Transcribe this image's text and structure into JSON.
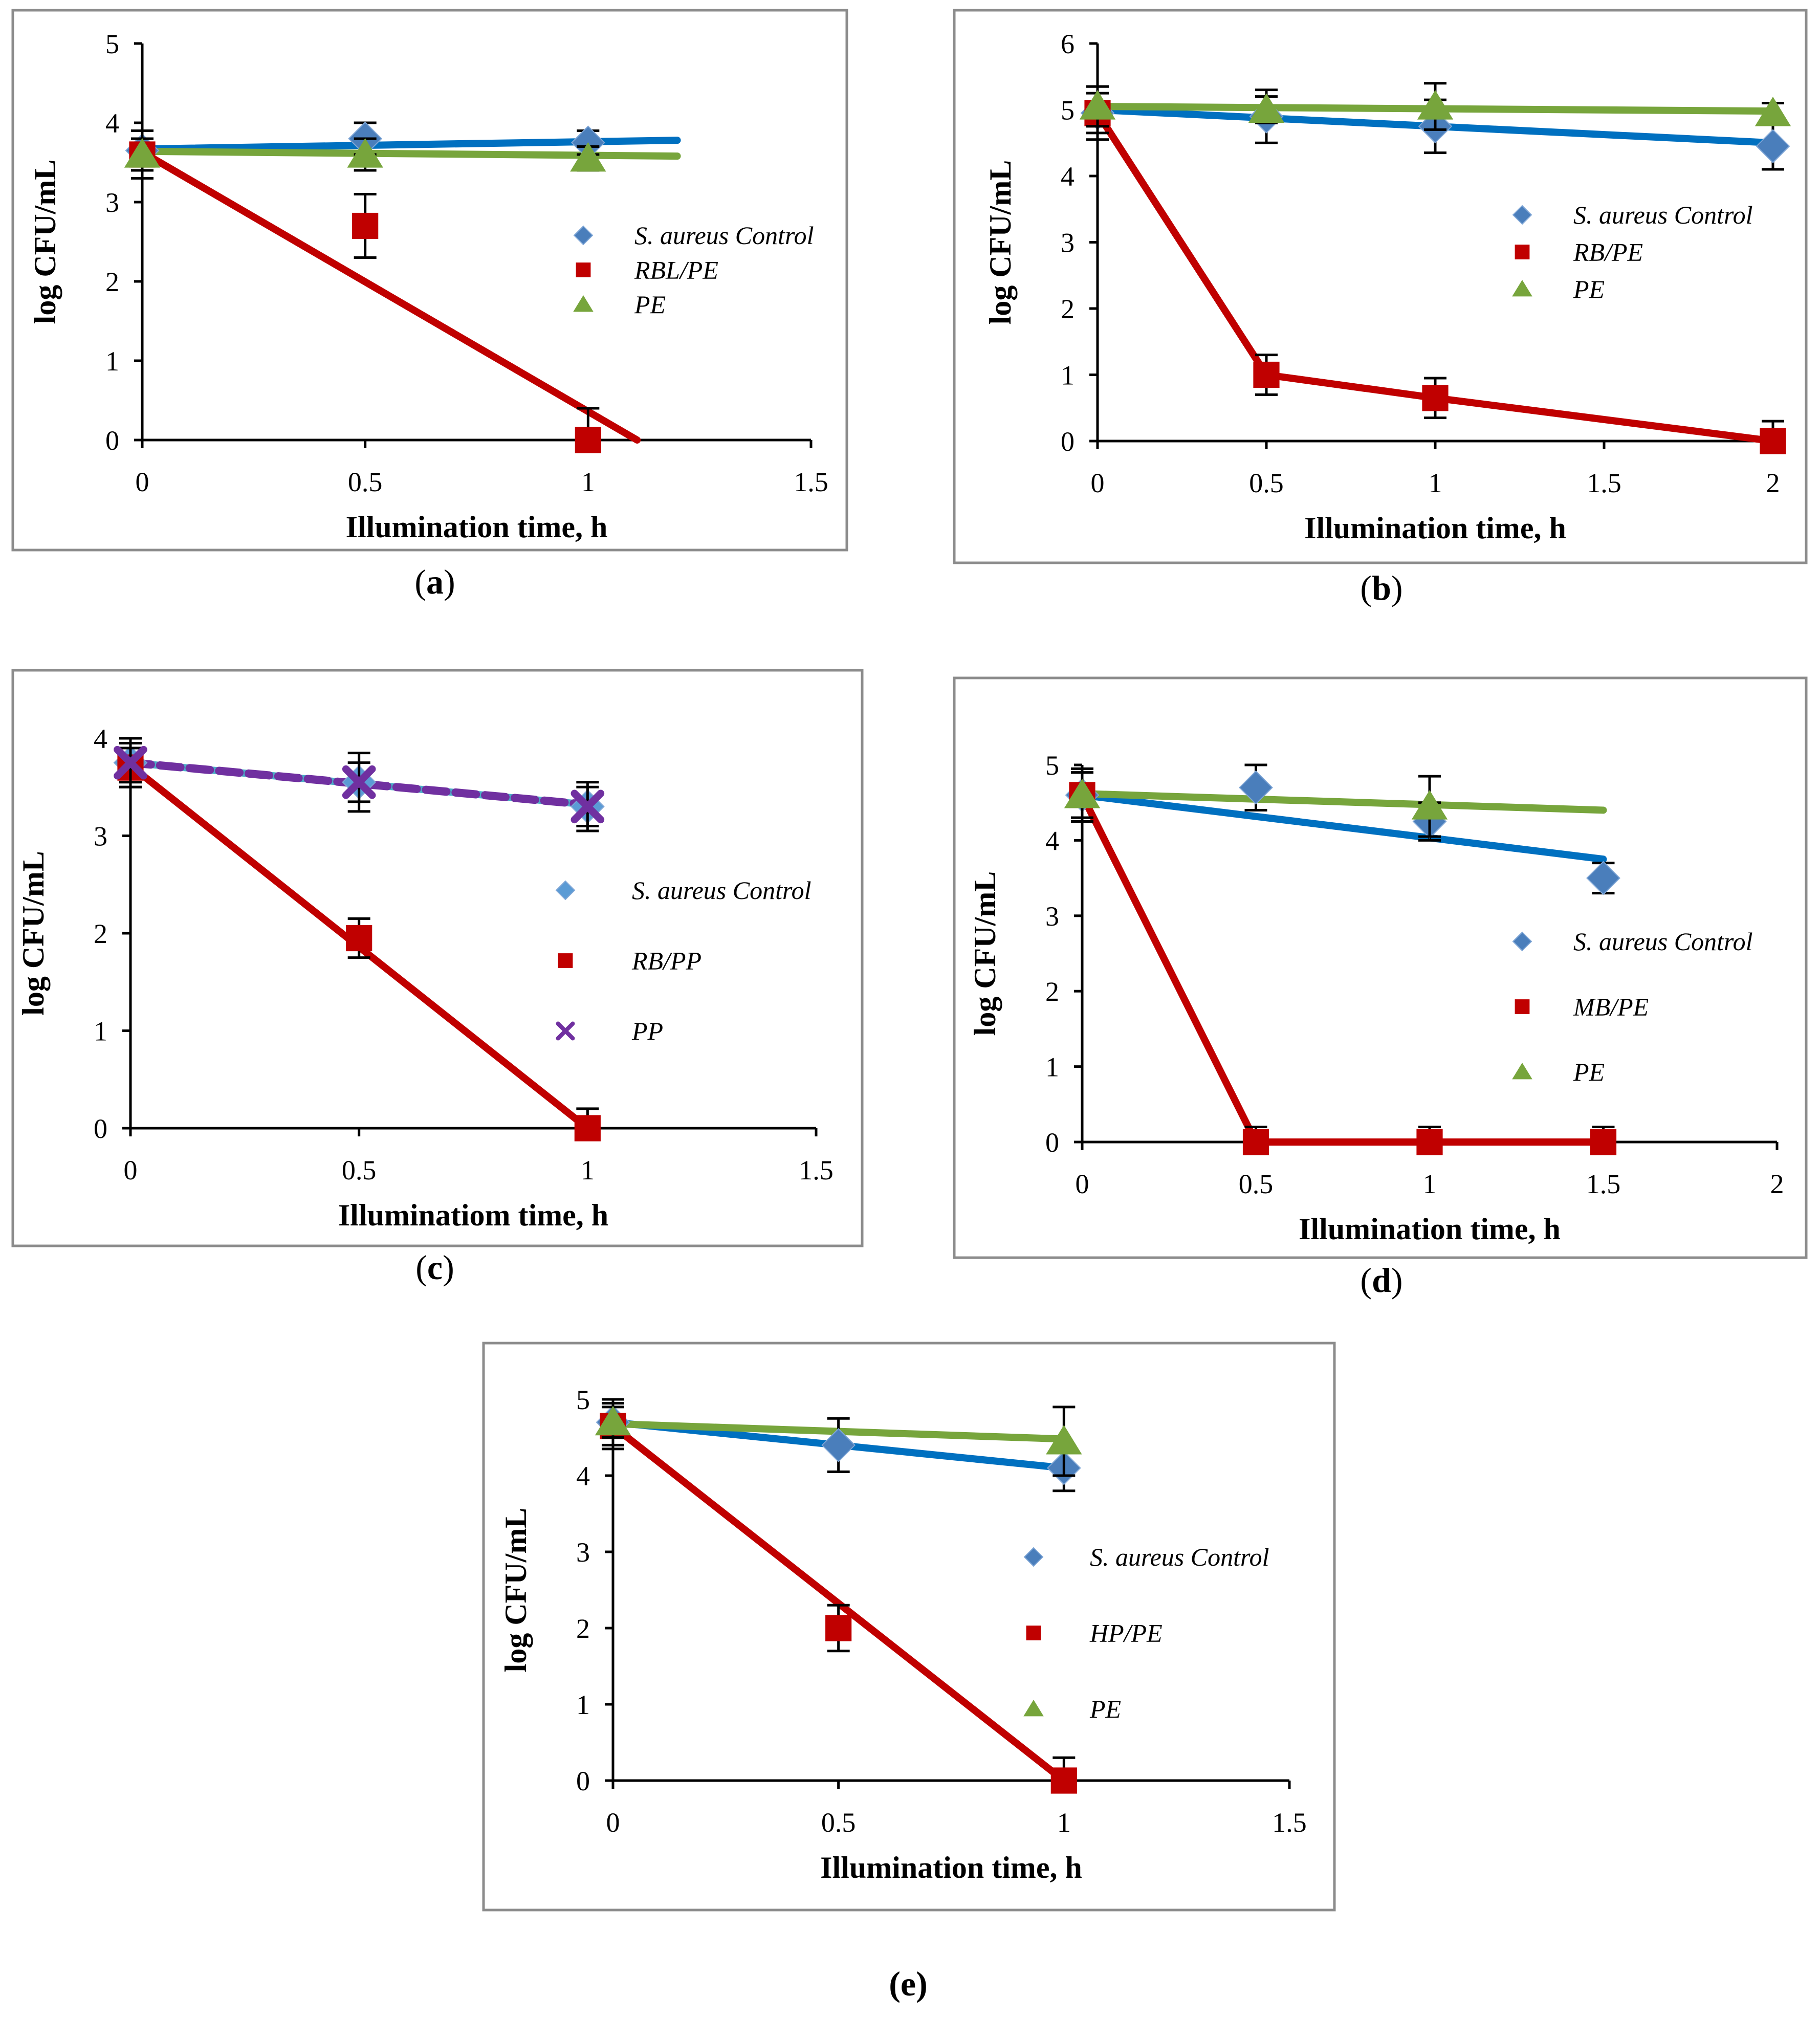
{
  "chart_data": [
    {
      "id": "a",
      "type": "scatter",
      "caption": "a",
      "xlabel": "Illumination time, h",
      "ylabel": "log CFU/mL",
      "xlim": [
        0,
        1.5
      ],
      "ylim": [
        0,
        5
      ],
      "xticks": [
        "0",
        "0.5",
        "1",
        "1.5"
      ],
      "yticks": [
        "0",
        "1",
        "2",
        "3",
        "4",
        "5"
      ],
      "series": [
        {
          "name": "S. aureus Control",
          "marker": "diamond",
          "color": "#4a7ebb",
          "line_color": "#0070c0",
          "x": [
            0,
            0.5,
            1
          ],
          "y": [
            3.65,
            3.8,
            3.75
          ],
          "err": [
            0.15,
            0.2,
            0.15
          ],
          "trend": [
            [
              0,
              3.67
            ],
            [
              1.2,
              3.78
            ]
          ]
        },
        {
          "name": "RBL/PE",
          "marker": "square",
          "color": "#c00000",
          "line_color": "#c00000",
          "x": [
            0,
            0.5,
            1
          ],
          "y": [
            3.6,
            2.7,
            0.0
          ],
          "err": [
            0.3,
            0.4,
            0.4
          ],
          "trend": [
            [
              0,
              3.63
            ],
            [
              1.11,
              0
            ]
          ]
        },
        {
          "name": "PE",
          "marker": "triangle",
          "color": "#77a53c",
          "line_color": "#77a53c",
          "x": [
            0,
            0.5,
            1
          ],
          "y": [
            3.6,
            3.6,
            3.55
          ],
          "err": [
            0.2,
            0.2,
            0.15
          ],
          "trend": [
            [
              0,
              3.64
            ],
            [
              1.2,
              3.58
            ]
          ]
        }
      ]
    },
    {
      "id": "b",
      "type": "scatter",
      "caption": "b",
      "xlabel": "Illumination time, h",
      "ylabel": "log CFU/mL",
      "xlim": [
        0,
        2
      ],
      "ylim": [
        0,
        6
      ],
      "xticks": [
        "0",
        "0.5",
        "1",
        "1.5",
        "2"
      ],
      "yticks": [
        "0",
        "1",
        "2",
        "3",
        "4",
        "5",
        "6"
      ],
      "series": [
        {
          "name": "S. aureus Control",
          "marker": "diamond",
          "color": "#4a7ebb",
          "line_color": "#0070c0",
          "x": [
            0,
            0.5,
            1,
            2
          ],
          "y": [
            4.95,
            4.9,
            4.75,
            4.45
          ],
          "err": [
            0.4,
            0.4,
            0.4,
            0.35
          ],
          "trend": [
            [
              0,
              5.0
            ],
            [
              2,
              4.5
            ]
          ]
        },
        {
          "name": "RB/PE",
          "marker": "square",
          "color": "#c00000",
          "line_color": "#c00000",
          "x": [
            0,
            0.5,
            1,
            2
          ],
          "y": [
            4.95,
            1.0,
            0.65,
            0.0
          ],
          "err": [
            0.3,
            0.3,
            0.3,
            0.3
          ],
          "trend": [
            [
              0,
              4.95
            ],
            [
              0.5,
              1.0
            ],
            [
              1,
              0.65
            ],
            [
              2,
              0.0
            ]
          ]
        },
        {
          "name": "PE",
          "marker": "triangle",
          "color": "#77a53c",
          "line_color": "#77a53c",
          "x": [
            0,
            0.5,
            1,
            2
          ],
          "y": [
            5.05,
            5.0,
            5.05,
            4.95
          ],
          "err": [
            0.3,
            0.2,
            0.35,
            0.15
          ],
          "trend": [
            [
              0,
              5.05
            ],
            [
              2,
              4.98
            ]
          ]
        }
      ]
    },
    {
      "id": "c",
      "type": "scatter",
      "caption": "c",
      "xlabel": "Illuminatiom time, h",
      "ylabel": "log CFU/mL",
      "xlim": [
        0,
        1.5
      ],
      "ylim": [
        0,
        4
      ],
      "xticks": [
        "0",
        "0.5",
        "1",
        "1.5"
      ],
      "yticks": [
        "0",
        "1",
        "2",
        "3",
        "4"
      ],
      "series": [
        {
          "name": "S. aureus Control",
          "marker": "diamond",
          "color": "#5b9bd5",
          "line_color": "#4bacc6",
          "x": [
            0,
            0.5,
            1
          ],
          "y": [
            3.75,
            3.55,
            3.3
          ],
          "err": [
            0.2,
            0.2,
            0.2
          ],
          "trend": [
            [
              0,
              3.75
            ],
            [
              1,
              3.32
            ]
          ]
        },
        {
          "name": "RB/PP",
          "marker": "square",
          "color": "#c00000",
          "line_color": "#c00000",
          "x": [
            0,
            0.5,
            1
          ],
          "y": [
            3.7,
            1.95,
            0.0
          ],
          "err": [
            0.2,
            0.2,
            0.2
          ],
          "trend": [
            [
              0,
              3.72
            ],
            [
              1,
              0
            ]
          ]
        },
        {
          "name": "PP",
          "marker": "cross",
          "color": "#7030a0",
          "line_color": "#7030a0",
          "dashed": true,
          "x": [
            0,
            0.5,
            1
          ],
          "y": [
            3.75,
            3.55,
            3.3
          ],
          "err": [
            0.25,
            0.3,
            0.25
          ],
          "trend": [
            [
              0,
              3.75
            ],
            [
              1,
              3.32
            ]
          ]
        }
      ]
    },
    {
      "id": "d",
      "type": "scatter",
      "caption": "d",
      "xlabel": "Illumination time, h",
      "ylabel": "log CFU/mL",
      "xlim": [
        0,
        2
      ],
      "ylim": [
        0,
        5
      ],
      "xticks": [
        "0",
        "0.5",
        "1",
        "1.5",
        "2"
      ],
      "yticks": [
        "0",
        "1",
        "2",
        "3",
        "4",
        "5"
      ],
      "series": [
        {
          "name": "S. aureus Control",
          "marker": "diamond",
          "color": "#4a7ebb",
          "line_color": "#0070c0",
          "x": [
            0,
            0.5,
            1,
            1.5
          ],
          "y": [
            4.6,
            4.7,
            4.25,
            3.5
          ],
          "err": [
            0.3,
            0.3,
            0.25,
            0.2
          ],
          "trend": [
            [
              0,
              4.6
            ],
            [
              1.5,
              3.75
            ]
          ]
        },
        {
          "name": "MB/PE",
          "marker": "square",
          "color": "#c00000",
          "line_color": "#c00000",
          "x": [
            0,
            0.5,
            1,
            1.5
          ],
          "y": [
            4.6,
            0.0,
            0.0,
            0.0
          ],
          "err": [
            0.35,
            0.2,
            0.2,
            0.2
          ],
          "trend": [
            [
              0,
              4.6
            ],
            [
              0.5,
              0
            ],
            [
              1.5,
              0
            ]
          ]
        },
        {
          "name": "PE",
          "marker": "triangle",
          "color": "#77a53c",
          "line_color": "#77a53c",
          "x": [
            0,
            1
          ],
          "y": [
            4.6,
            4.45
          ],
          "err": [
            0.3,
            0.4
          ],
          "trend": [
            [
              0,
              4.62
            ],
            [
              1.5,
              4.4
            ]
          ]
        }
      ]
    },
    {
      "id": "e",
      "type": "scatter",
      "caption": "e",
      "xlabel": "Illumination time, h",
      "ylabel": "log CFU/mL",
      "xlim": [
        0,
        1.5
      ],
      "ylim": [
        0,
        5
      ],
      "xticks": [
        "0",
        "0.5",
        "1",
        "1.5"
      ],
      "yticks": [
        "0",
        "1",
        "2",
        "3",
        "4",
        "5"
      ],
      "series": [
        {
          "name": "S. aureus Control",
          "marker": "diamond",
          "color": "#4a7ebb",
          "line_color": "#0070c0",
          "x": [
            0,
            0.5,
            1
          ],
          "y": [
            4.7,
            4.4,
            4.1
          ],
          "err": [
            0.3,
            0.35,
            0.3
          ],
          "trend": [
            [
              0,
              4.7
            ],
            [
              1,
              4.1
            ]
          ]
        },
        {
          "name": "HP/PE",
          "marker": "square",
          "color": "#c00000",
          "line_color": "#c00000",
          "x": [
            0,
            0.5,
            1
          ],
          "y": [
            4.65,
            2.0,
            0.0
          ],
          "err": [
            0.3,
            0.3,
            0.3
          ],
          "trend": [
            [
              0,
              4.65
            ],
            [
              1,
              0
            ]
          ]
        },
        {
          "name": "PE",
          "marker": "triangle",
          "color": "#77a53c",
          "line_color": "#77a53c",
          "x": [
            0,
            1
          ],
          "y": [
            4.7,
            4.45
          ],
          "err": [
            0.2,
            0.45
          ],
          "trend": [
            [
              0,
              4.68
            ],
            [
              1,
              4.48
            ]
          ]
        }
      ]
    }
  ]
}
